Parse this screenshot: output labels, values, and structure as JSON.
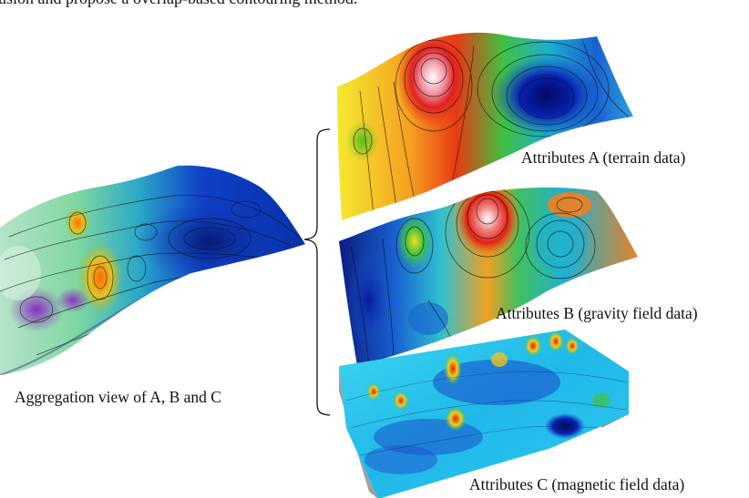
{
  "caption_fragment": "usion and propose a overlap-based contouring method.",
  "labels": {
    "aggregation": "Aggregation view of A, B and C",
    "attr_a": "Attributes A (terrain data)",
    "attr_b": "Attributes B (gravity field data)",
    "attr_c": "Attributes C (magnetic field data)"
  },
  "icons": {
    "bracket": "curly-brace-icon"
  },
  "colors": {
    "low": "#0a1a9a",
    "mid": "#20c0e0",
    "high": "#e03010",
    "peak": "#ffffff"
  }
}
